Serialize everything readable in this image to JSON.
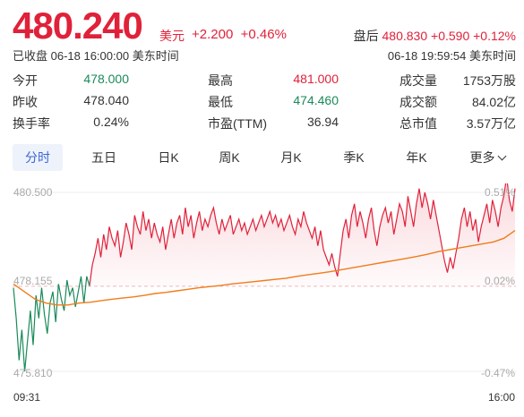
{
  "quote": {
    "price": "480.240",
    "currency": "美元",
    "change": "+2.200",
    "change_pct": "+0.46%",
    "after_hours_label": "盘后",
    "after_hours_price": "480.830",
    "after_hours_change": "+0.590",
    "after_hours_pct": "+0.12%",
    "status": "已收盘 06-18 16:00:00 美东时间",
    "after_hours_time": "06-18 19:59:54 美东时间"
  },
  "stats": [
    [
      {
        "label": "今开",
        "value": "478.000",
        "tone": "green"
      },
      {
        "label": "最高",
        "value": "481.000",
        "tone": "red"
      },
      {
        "label": "成交量",
        "value": "1753万股",
        "tone": ""
      }
    ],
    [
      {
        "label": "昨收",
        "value": "478.040",
        "tone": ""
      },
      {
        "label": "最低",
        "value": "474.460",
        "tone": "green"
      },
      {
        "label": "成交额",
        "value": "84.02亿",
        "tone": ""
      }
    ],
    [
      {
        "label": "换手率",
        "value": "0.24%",
        "tone": ""
      },
      {
        "label": "市盈(TTM)",
        "value": "36.94",
        "tone": ""
      },
      {
        "label": "总市值",
        "value": "3.57万亿",
        "tone": ""
      }
    ]
  ],
  "tabs": [
    "分时",
    "五日",
    "日K",
    "周K",
    "月K",
    "季K",
    "年K",
    "更多"
  ],
  "colors": {
    "up": "#e0213a",
    "down": "#1a8a5a",
    "avg": "#f07c1b",
    "accent": "#3b66d6"
  },
  "chart_data": {
    "type": "line",
    "y_left_labels": [
      "480.500",
      "478.155",
      "475.810"
    ],
    "y_right_labels": [
      "0.51%",
      "0.02%",
      "-0.47%"
    ],
    "x_labels": [
      "09:31",
      "16:00"
    ],
    "ylim": [
      475.81,
      480.5
    ],
    "prev_close": 478.04,
    "series": [
      {
        "values": [
          478.0,
          477.2,
          476.1,
          476.9,
          475.81,
          476.6,
          477.4,
          476.5,
          477.8,
          477.2,
          478.0,
          477.3,
          476.8,
          477.6,
          477.9,
          477.1,
          478.1,
          477.7,
          477.4,
          478.2,
          477.8,
          478.0,
          477.5,
          477.9,
          478.3,
          477.6,
          478.3,
          478.05,
          478.6,
          478.9,
          479.3,
          478.8,
          479.4,
          479.0,
          479.6,
          479.3,
          479.1,
          479.5,
          478.8,
          479.2,
          479.7,
          479.4,
          479.0,
          479.9,
          479.6,
          479.4,
          480.0,
          479.5,
          479.8,
          479.3,
          479.7,
          479.4,
          479.2,
          479.6,
          479.0,
          479.4,
          479.8,
          479.3,
          479.7,
          479.9,
          479.4,
          480.1,
          479.6,
          479.9,
          479.3,
          479.7,
          480.0,
          479.5,
          479.8,
          479.6,
          479.9,
          480.1,
          479.7,
          479.4,
          479.8,
          479.5,
          479.7,
          479.9,
          479.4,
          479.6,
          479.8,
          479.5,
          479.7,
          479.4,
          479.6,
          479.8,
          479.5,
          479.7,
          479.9,
          479.6,
          479.8,
          480.0,
          479.7,
          479.9,
          479.6,
          479.8,
          479.5,
          479.7,
          479.9,
          479.6,
          479.4,
          479.8,
          479.6,
          480.0,
          479.7,
          479.5,
          479.3,
          479.6,
          479.1,
          479.5,
          479.0,
          478.8,
          478.6,
          478.9,
          478.55,
          478.3,
          478.9,
          479.5,
          479.8,
          479.3,
          479.9,
          480.2,
          479.6,
          480.0,
          479.7,
          479.3,
          479.8,
          480.1,
          479.5,
          479.1,
          479.6,
          479.9,
          480.1,
          479.7,
          480.0,
          479.4,
          479.8,
          480.2,
          480.0,
          479.6,
          480.4,
          480.0,
          479.6,
          480.2,
          480.6,
          480.1,
          480.5,
          480.2,
          479.8,
          480.3,
          479.9,
          479.5,
          479.1,
          478.7,
          478.4,
          478.8,
          478.5,
          478.9,
          479.3,
          479.8,
          480.1,
          479.6,
          480.0,
          479.5,
          479.8,
          479.2,
          479.6,
          479.9,
          480.2,
          479.7,
          480.3,
          480.0,
          479.6,
          480.1,
          480.4,
          480.9,
          480.3,
          480.0,
          480.6
        ],
        "color": "#e0213a"
      },
      {
        "values": [
          478.1,
          477.9,
          477.7,
          477.6,
          477.55,
          477.55,
          477.6,
          477.62,
          477.66,
          477.7,
          477.73,
          477.76,
          477.8,
          477.85,
          477.88,
          477.92,
          477.96,
          478.0,
          478.03,
          478.06,
          478.1,
          478.13,
          478.16,
          478.19,
          478.22,
          478.25,
          478.3,
          478.34,
          478.38,
          478.42,
          478.47,
          478.52,
          478.57,
          478.62,
          478.67,
          478.72,
          478.77,
          478.82,
          478.88,
          478.95,
          479.0,
          479.05,
          479.1,
          479.15,
          479.2,
          479.3,
          479.5
        ],
        "color": "#f07c1b"
      }
    ]
  }
}
